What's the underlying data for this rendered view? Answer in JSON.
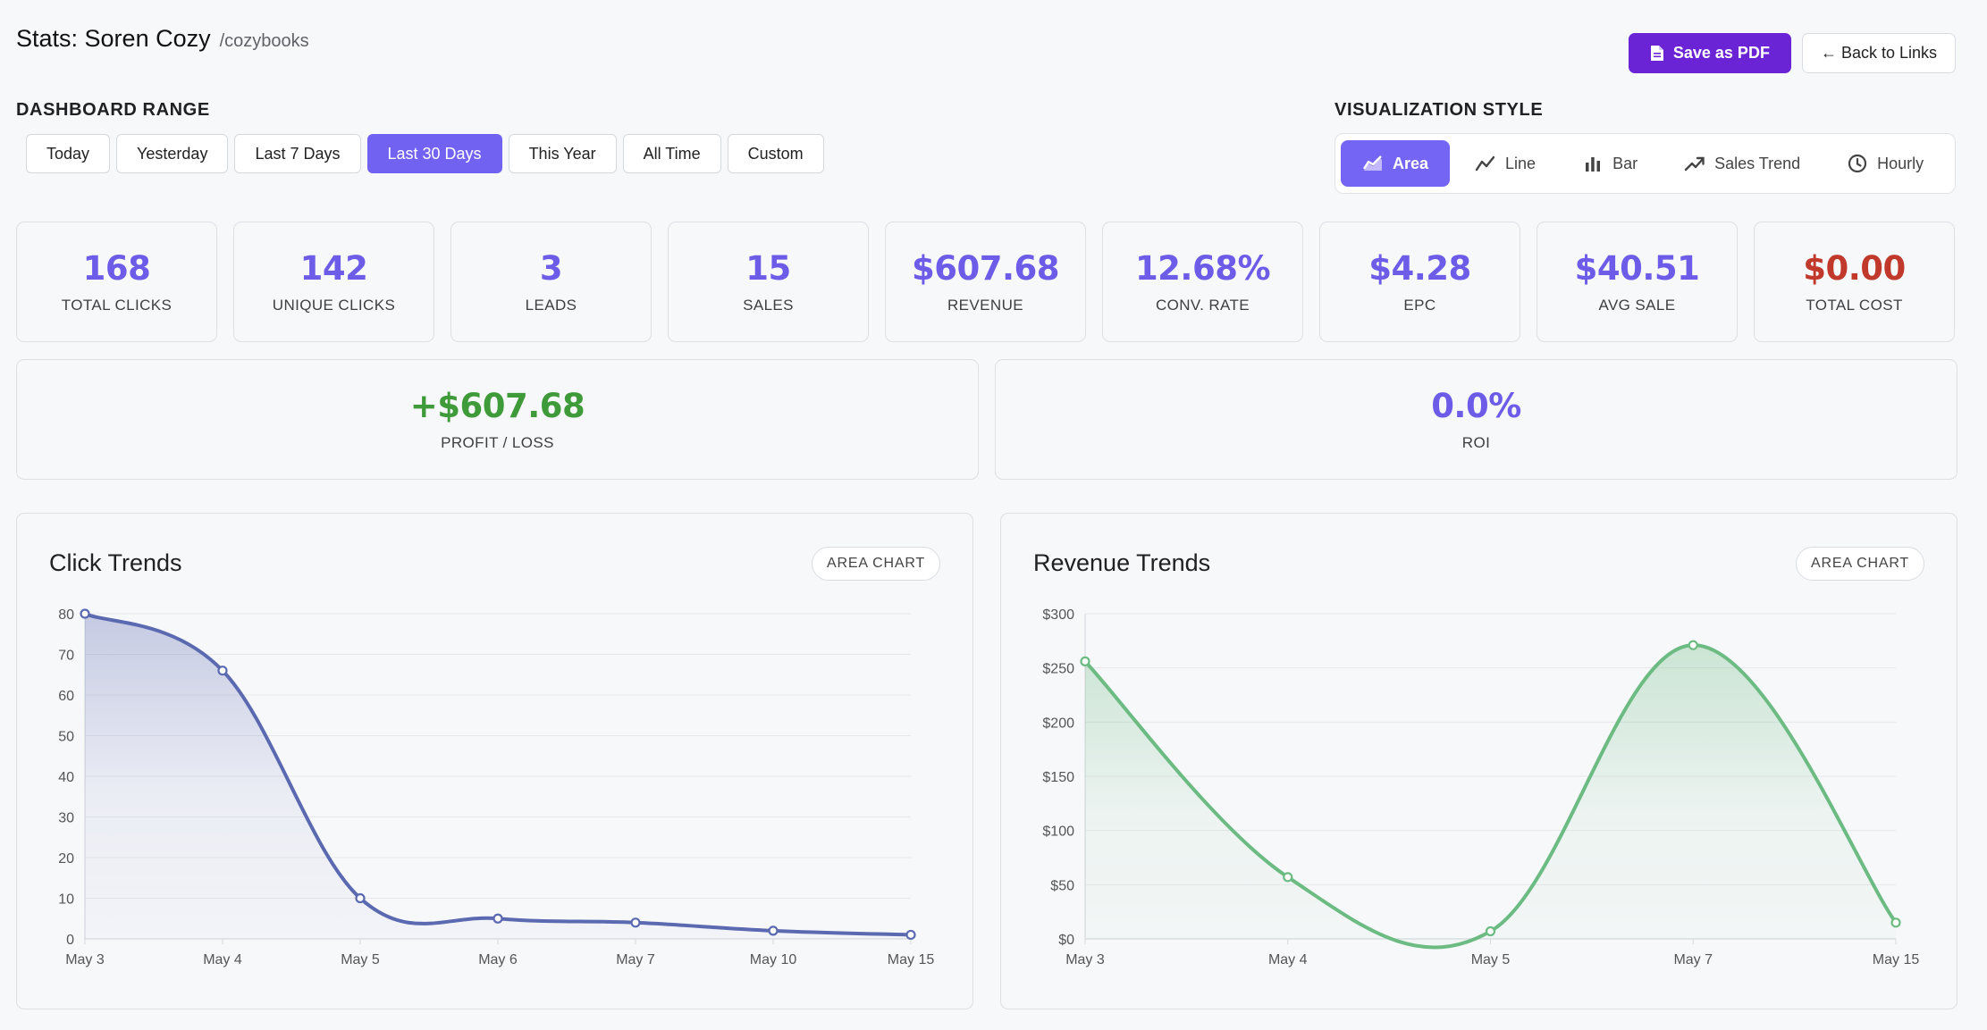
{
  "header": {
    "title": "Stats: Soren Cozy",
    "slug": "/cozybooks"
  },
  "actions": {
    "save_pdf": "Save as PDF",
    "back": "← Back to Links"
  },
  "range": {
    "label": "DASHBOARD RANGE",
    "options": [
      "Today",
      "Yesterday",
      "Last 7 Days",
      "Last 30 Days",
      "This Year",
      "All Time",
      "Custom"
    ],
    "active": "Last 30 Days"
  },
  "viz": {
    "label": "VISUALIZATION STYLE",
    "options": [
      {
        "label": "Area",
        "icon": "area-chart-icon"
      },
      {
        "label": "Line",
        "icon": "line-chart-icon"
      },
      {
        "label": "Bar",
        "icon": "bar-chart-icon"
      },
      {
        "label": "Sales Trend",
        "icon": "trend-up-icon"
      },
      {
        "label": "Hourly",
        "icon": "clock-icon"
      }
    ],
    "active": "Area"
  },
  "stats": [
    {
      "value": "168",
      "label": "TOTAL CLICKS"
    },
    {
      "value": "142",
      "label": "UNIQUE CLICKS"
    },
    {
      "value": "3",
      "label": "LEADS"
    },
    {
      "value": "15",
      "label": "SALES"
    },
    {
      "value": "$607.68",
      "label": "REVENUE"
    },
    {
      "value": "12.68%",
      "label": "CONV. RATE"
    },
    {
      "value": "$4.28",
      "label": "EPC"
    },
    {
      "value": "$40.51",
      "label": "AVG SALE"
    },
    {
      "value": "$0.00",
      "label": "TOTAL COST"
    }
  ],
  "profit": {
    "value": "+$607.68",
    "label": "PROFIT / LOSS"
  },
  "roi": {
    "value": "0.0%",
    "label": "ROI"
  },
  "colors": {
    "accent": "#6c5ce7",
    "primary_button": "#6a24d6",
    "profit": "#3f9a3a",
    "cost": "#c0392b",
    "click_series": "#5a69b0",
    "revenue_series": "#6cbb83"
  },
  "chart_data": [
    {
      "type": "area",
      "title": "Click Trends",
      "badge": "AREA CHART",
      "x": [
        "May 3",
        "May 4",
        "May 5",
        "May 6",
        "May 7",
        "May 10",
        "May 15"
      ],
      "values": [
        80,
        66,
        10,
        5,
        4,
        2,
        1
      ],
      "ylim": [
        0,
        80
      ],
      "yticks": [
        0,
        10,
        20,
        30,
        40,
        50,
        60,
        70,
        80
      ],
      "grid": true
    },
    {
      "type": "area",
      "title": "Revenue Trends",
      "badge": "AREA CHART",
      "x": [
        "May 3",
        "May 4",
        "May 5",
        "May 7",
        "May 15"
      ],
      "values": [
        256,
        57,
        7,
        271,
        15
      ],
      "ylim": [
        0,
        300
      ],
      "yticks": [
        0,
        50,
        100,
        150,
        200,
        250,
        300
      ],
      "ytick_prefix": "$",
      "grid": true
    }
  ]
}
